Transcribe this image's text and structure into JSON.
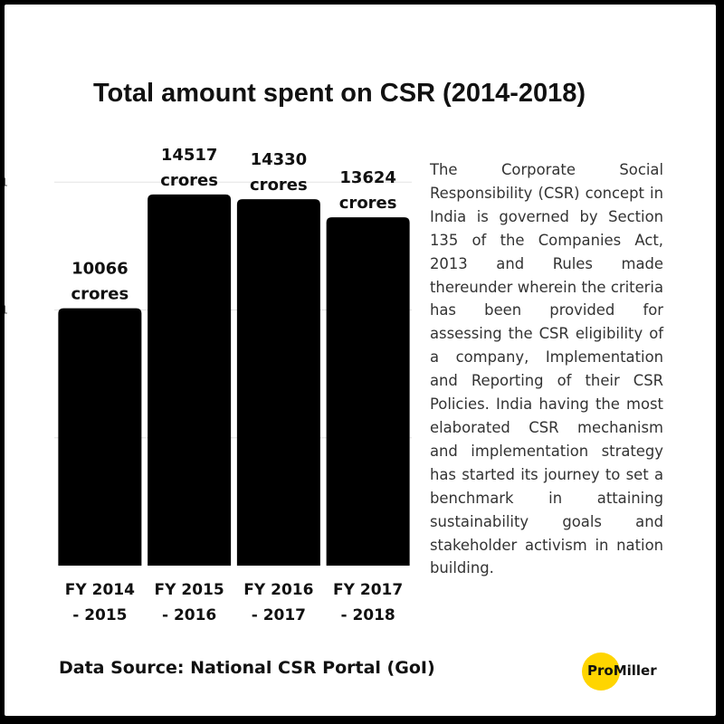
{
  "chart_data": {
    "type": "bar",
    "title": "Total amount spent on CSR (2014-2018)",
    "categories": [
      [
        "FY 2014",
        "- 2015"
      ],
      [
        "FY 2015",
        "- 2016"
      ],
      [
        "FY 2016",
        "- 2017"
      ],
      [
        "FY 2017",
        "- 2018"
      ]
    ],
    "values": [
      10066,
      14517,
      14330,
      13624
    ],
    "value_labels": [
      [
        "10066",
        "crores"
      ],
      [
        "14517",
        "crores"
      ],
      [
        "14330",
        "crores"
      ],
      [
        "13624",
        "crores"
      ]
    ],
    "unit": "crores",
    "ylim": [
      0,
      20000
    ],
    "gridlines": [
      5000,
      10000,
      15000
    ],
    "ytick_labels": [
      "1",
      "1"
    ],
    "grid": true,
    "xlabel": "",
    "ylabel": ""
  },
  "description": "The Corporate Social Responsibility (CSR) concept in India is governed by Section 135 of the Companies Act, 2013 and Rules made thereunder wherein the criteria has been provided for assessing the CSR eligibility of a company, Implementation and Reporting of their CSR Policies. India having the most elaborated CSR mechanism and implementation strategy has started its journey to set a benchmark in attaining sustainability goals and stakeholder activism in nation building.",
  "source": "Data Source: National CSR Portal (GoI)",
  "brand": {
    "name": "ProMiller",
    "accent": "#ffd500"
  },
  "colors": {
    "bar": "#000000",
    "background": "#ffffff",
    "frame": "#000000"
  }
}
